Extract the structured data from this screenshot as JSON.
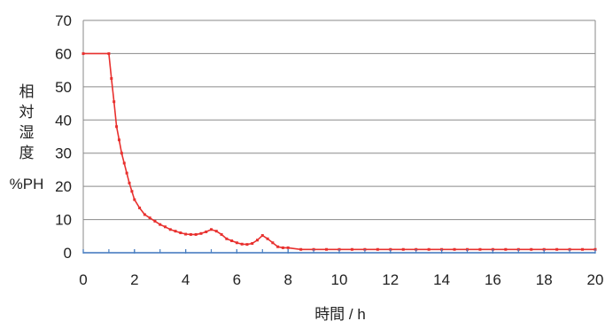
{
  "chart_data": {
    "type": "line",
    "ylabel_chars": [
      "相",
      "対",
      "湿",
      "度"
    ],
    "ylabel_unit": "%PH",
    "xlabel": "時間 / h",
    "xlim": [
      0,
      20
    ],
    "ylim": [
      0,
      70
    ],
    "xticks": [
      "0",
      "2",
      "4",
      "6",
      "8",
      "10",
      "12",
      "14",
      "16",
      "18",
      "20"
    ],
    "yticks": [
      "0",
      "10",
      "20",
      "30",
      "40",
      "50",
      "60",
      "70"
    ],
    "grid": true,
    "series": [
      {
        "color": "#e8302e",
        "x": [
          0,
          1,
          1.1,
          1.2,
          1.3,
          1.4,
          1.5,
          1.6,
          1.7,
          1.8,
          1.9,
          2.0,
          2.2,
          2.4,
          2.6,
          2.8,
          3.0,
          3.2,
          3.4,
          3.6,
          3.8,
          4.0,
          4.2,
          4.4,
          4.6,
          4.8,
          5.0,
          5.2,
          5.4,
          5.6,
          5.8,
          6.0,
          6.2,
          6.4,
          6.6,
          6.8,
          7.0,
          7.2,
          7.4,
          7.6,
          7.8,
          8.0,
          8.5,
          9,
          9.5,
          10,
          10.5,
          11,
          11.5,
          12,
          12.5,
          13,
          13.5,
          14,
          14.5,
          15,
          15.5,
          16,
          16.5,
          17,
          17.5,
          18,
          18.5,
          19,
          19.5,
          20
        ],
        "y": [
          60,
          60,
          52.5,
          45.5,
          38,
          34,
          30,
          27,
          24,
          21,
          18.5,
          16,
          13.5,
          11.5,
          10.5,
          9.5,
          8.5,
          7.8,
          7,
          6.5,
          6,
          5.6,
          5.5,
          5.5,
          5.8,
          6.3,
          7,
          6.5,
          5.5,
          4.2,
          3.6,
          3.0,
          2.6,
          2.5,
          2.8,
          3.8,
          5.2,
          4.2,
          3.0,
          1.8,
          1.5,
          1.5,
          1,
          1,
          1,
          1,
          1,
          1,
          1,
          1,
          1,
          1,
          1,
          1,
          1,
          1,
          1,
          1,
          1,
          1,
          1,
          1,
          1,
          1,
          1,
          1
        ]
      },
      {
        "color": "#4a7fc1",
        "x": [
          0,
          1,
          2,
          3,
          4,
          5,
          6,
          7,
          8,
          9,
          10,
          11,
          12,
          13,
          14,
          15,
          16,
          17,
          18,
          19,
          20
        ],
        "y": [
          0,
          0,
          0,
          0,
          0,
          0,
          0,
          0,
          0,
          0,
          0,
          0,
          0,
          0,
          0,
          0,
          0,
          0,
          0,
          0,
          0
        ]
      }
    ]
  }
}
